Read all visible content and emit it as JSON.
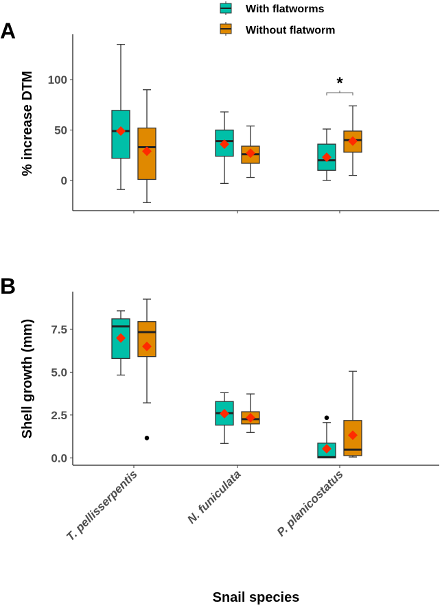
{
  "legend": {
    "items": [
      {
        "label": "With flatworms",
        "color": "#00BFA8"
      },
      {
        "label": "Without flatworm",
        "color": "#E08900"
      }
    ]
  },
  "mean_color": "#FF2A00",
  "chart_data": [
    {
      "type": "box",
      "panel_label": "A",
      "ylabel": "% increase DTM",
      "xlabel": "",
      "ylim": [
        -30,
        145
      ],
      "yticks": [
        0,
        50,
        100
      ],
      "ytick_labels": [
        "0",
        "50",
        "100"
      ],
      "categories": [
        "T. pellisserpentis",
        "N. funiculata",
        "P. planicostatus"
      ],
      "series": [
        {
          "name": "With flatworms",
          "boxes": [
            {
              "min": -9,
              "q1": 22,
              "median": 49,
              "q3": 69.5,
              "max": 135,
              "mean": 49,
              "outliers": []
            },
            {
              "min": -3,
              "q1": 24,
              "median": 39,
              "q3": 50,
              "max": 68,
              "mean": 36,
              "outliers": []
            },
            {
              "min": 0,
              "q1": 10,
              "median": 20,
              "q3": 36,
              "max": 51,
              "mean": 23,
              "outliers": []
            }
          ]
        },
        {
          "name": "Without flatworm",
          "boxes": [
            {
              "min": -22,
              "q1": 1,
              "median": 33,
              "q3": 52,
              "max": 90,
              "mean": 29,
              "outliers": []
            },
            {
              "min": 3,
              "q1": 17,
              "median": 26,
              "q3": 34,
              "max": 54,
              "mean": 27,
              "outliers": []
            },
            {
              "min": 5,
              "q1": 28,
              "median": 40,
              "q3": 49,
              "max": 74,
              "mean": 39,
              "outliers": []
            }
          ]
        }
      ],
      "annotations": [
        {
          "category": "P. planicostatus",
          "text": "*",
          "value": 87
        }
      ]
    },
    {
      "type": "box",
      "panel_label": "B",
      "ylabel": "Shell growth (mm)",
      "xlabel": "Snail species",
      "ylim": [
        -0.43,
        9.7
      ],
      "yticks": [
        0,
        2.5,
        5,
        7.5
      ],
      "ytick_labels": [
        "0.0",
        "2.5",
        "5.0",
        "7.5"
      ],
      "categories": [
        "T. pellisserpentis",
        "N. funiculata",
        "P. planicostatus"
      ],
      "series": [
        {
          "name": "With flatworms",
          "boxes": [
            {
              "min": 4.83,
              "q1": 5.8,
              "median": 7.67,
              "q3": 8.11,
              "max": 8.58,
              "mean": 6.99,
              "outliers": []
            },
            {
              "min": 0.84,
              "q1": 1.91,
              "median": 2.61,
              "q3": 3.29,
              "max": 3.8,
              "mean": 2.58,
              "outliers": []
            },
            {
              "min": 0,
              "q1": 0,
              "median": 0.04,
              "q3": 0.86,
              "max": 2.06,
              "mean": 0.53,
              "outliers": [
                2.34
              ]
            }
          ]
        },
        {
          "name": "Without flatworm",
          "boxes": [
            {
              "min": 3.21,
              "q1": 5.91,
              "median": 7.34,
              "q3": 7.95,
              "max": 9.26,
              "mean": 6.5,
              "outliers": [
                1.16
              ]
            },
            {
              "min": 1.48,
              "q1": 1.98,
              "median": 2.26,
              "q3": 2.69,
              "max": 3.73,
              "mean": 2.34,
              "outliers": []
            },
            {
              "min": 0.05,
              "q1": 0.13,
              "median": 0.48,
              "q3": 2.18,
              "max": 5.05,
              "mean": 1.32,
              "outliers": []
            }
          ]
        }
      ]
    }
  ]
}
